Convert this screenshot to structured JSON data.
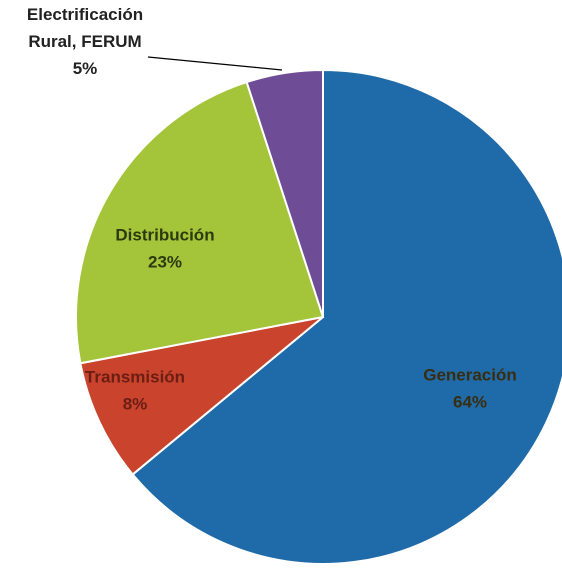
{
  "chart_data": {
    "type": "pie",
    "title": "",
    "slices": [
      {
        "label_lines": [
          "Generación"
        ],
        "percent_label": "64%",
        "value": 64,
        "color": "#1F6AA8",
        "label_color": "#3A2D0F"
      },
      {
        "label_lines": [
          "Transmisión"
        ],
        "percent_label": "8%",
        "value": 8,
        "color": "#C9432D",
        "label_color": "#6B1E12"
      },
      {
        "label_lines": [
          "Distribución"
        ],
        "percent_label": "23%",
        "value": 23,
        "color": "#A4C43A",
        "label_color": "#2D3A10"
      },
      {
        "label_lines": [
          "Electrificación",
          "Rural, FERUM"
        ],
        "percent_label": "5%",
        "value": 5,
        "color": "#6F4C96",
        "label_color": "#222222"
      }
    ],
    "start_angle_deg": 0,
    "direction": "clockwise",
    "legend": "none"
  }
}
